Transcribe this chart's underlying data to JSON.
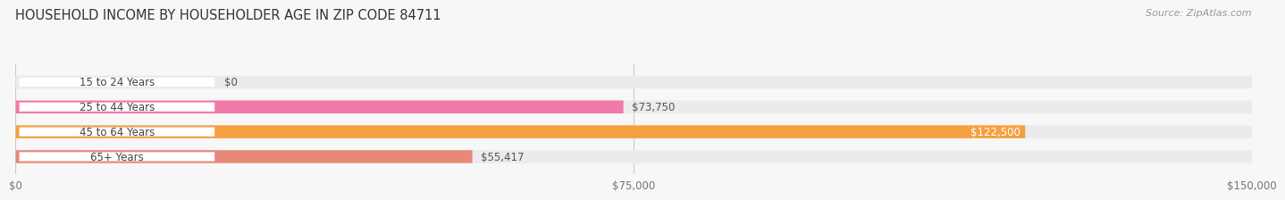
{
  "title": "HOUSEHOLD INCOME BY HOUSEHOLDER AGE IN ZIP CODE 84711",
  "source": "Source: ZipAtlas.com",
  "categories": [
    "15 to 24 Years",
    "25 to 44 Years",
    "45 to 64 Years",
    "65+ Years"
  ],
  "values": [
    0,
    73750,
    122500,
    55417
  ],
  "bar_colors": [
    "#a8a8d8",
    "#f07aaa",
    "#f5a040",
    "#e88878"
  ],
  "bar_bg_color": "#ebebeb",
  "value_labels": [
    "$0",
    "$73,750",
    "$122,500",
    "$55,417"
  ],
  "value_label_inside": [
    false,
    false,
    true,
    false
  ],
  "xlim": [
    0,
    150000
  ],
  "xticks": [
    0,
    75000,
    150000
  ],
  "xtick_labels": [
    "$0",
    "$75,000",
    "$150,000"
  ],
  "background_color": "#f7f7f7",
  "title_fontsize": 10.5,
  "bar_height": 0.52,
  "figsize": [
    14.06,
    2.33
  ]
}
